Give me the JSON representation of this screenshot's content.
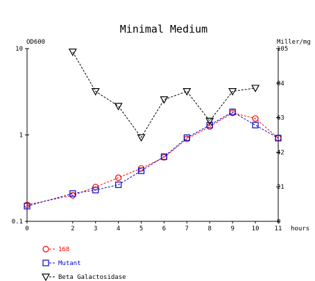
{
  "chart_data": {
    "type": "line",
    "title": "Minimal Medium",
    "left_axis": {
      "label": "OD600",
      "scale": "log",
      "range": [
        0.1,
        10
      ],
      "ticks": [
        {
          "value": 10,
          "label": "10"
        },
        {
          "value": 1,
          "label": "1"
        },
        {
          "value": 0.1,
          "label": "0.1"
        }
      ]
    },
    "right_axis": {
      "label": "Miller/mg",
      "scale": "linear",
      "range": [
        0,
        105
      ],
      "ticks": [
        {
          "value": 105,
          "label": "105"
        },
        {
          "value": 84,
          "label": "84"
        },
        {
          "value": 63,
          "label": "63"
        },
        {
          "value": 42,
          "label": "42"
        },
        {
          "value": 21,
          "label": "21"
        },
        {
          "value": 0,
          "label": "0"
        }
      ]
    },
    "x_axis": {
      "label": "hours",
      "range": [
        0,
        11
      ],
      "ticks": [
        {
          "value": 0,
          "label": "0"
        },
        {
          "value": 2,
          "label": "2"
        },
        {
          "value": 3,
          "label": "3"
        },
        {
          "value": 4,
          "label": "4"
        },
        {
          "value": 5,
          "label": "5"
        },
        {
          "value": 6,
          "label": "6"
        },
        {
          "value": 7,
          "label": "7"
        },
        {
          "value": 8,
          "label": "8"
        },
        {
          "value": 9,
          "label": "9"
        },
        {
          "value": 10,
          "label": "10"
        },
        {
          "value": 11,
          "label": "11"
        }
      ]
    },
    "grid": false,
    "legend_position": "bottom-left",
    "series": [
      {
        "name": "168",
        "axis": "left",
        "marker": "circle",
        "color": "#ff0000",
        "x": [
          0,
          2,
          3,
          4,
          5,
          6,
          7,
          8,
          9,
          10,
          11
        ],
        "y": [
          0.155,
          0.2,
          0.25,
          0.32,
          0.41,
          0.55,
          0.9,
          1.25,
          1.8,
          1.55,
          0.92
        ]
      },
      {
        "name": "Mutant",
        "axis": "left",
        "marker": "square",
        "color": "#0000cc",
        "x": [
          0,
          2,
          3,
          4,
          5,
          6,
          7,
          8,
          9,
          10,
          11
        ],
        "y": [
          0.15,
          0.21,
          0.23,
          0.265,
          0.385,
          0.56,
          0.93,
          1.3,
          1.85,
          1.3,
          0.92
        ]
      },
      {
        "name": "Beta Galactosidase",
        "axis": "right",
        "marker": "triangle-down",
        "color": "#000000",
        "x": [
          2,
          3,
          4,
          5,
          6,
          7,
          8,
          9,
          10
        ],
        "y": [
          103,
          79,
          70,
          51,
          74,
          79,
          61,
          79,
          81
        ]
      }
    ]
  }
}
